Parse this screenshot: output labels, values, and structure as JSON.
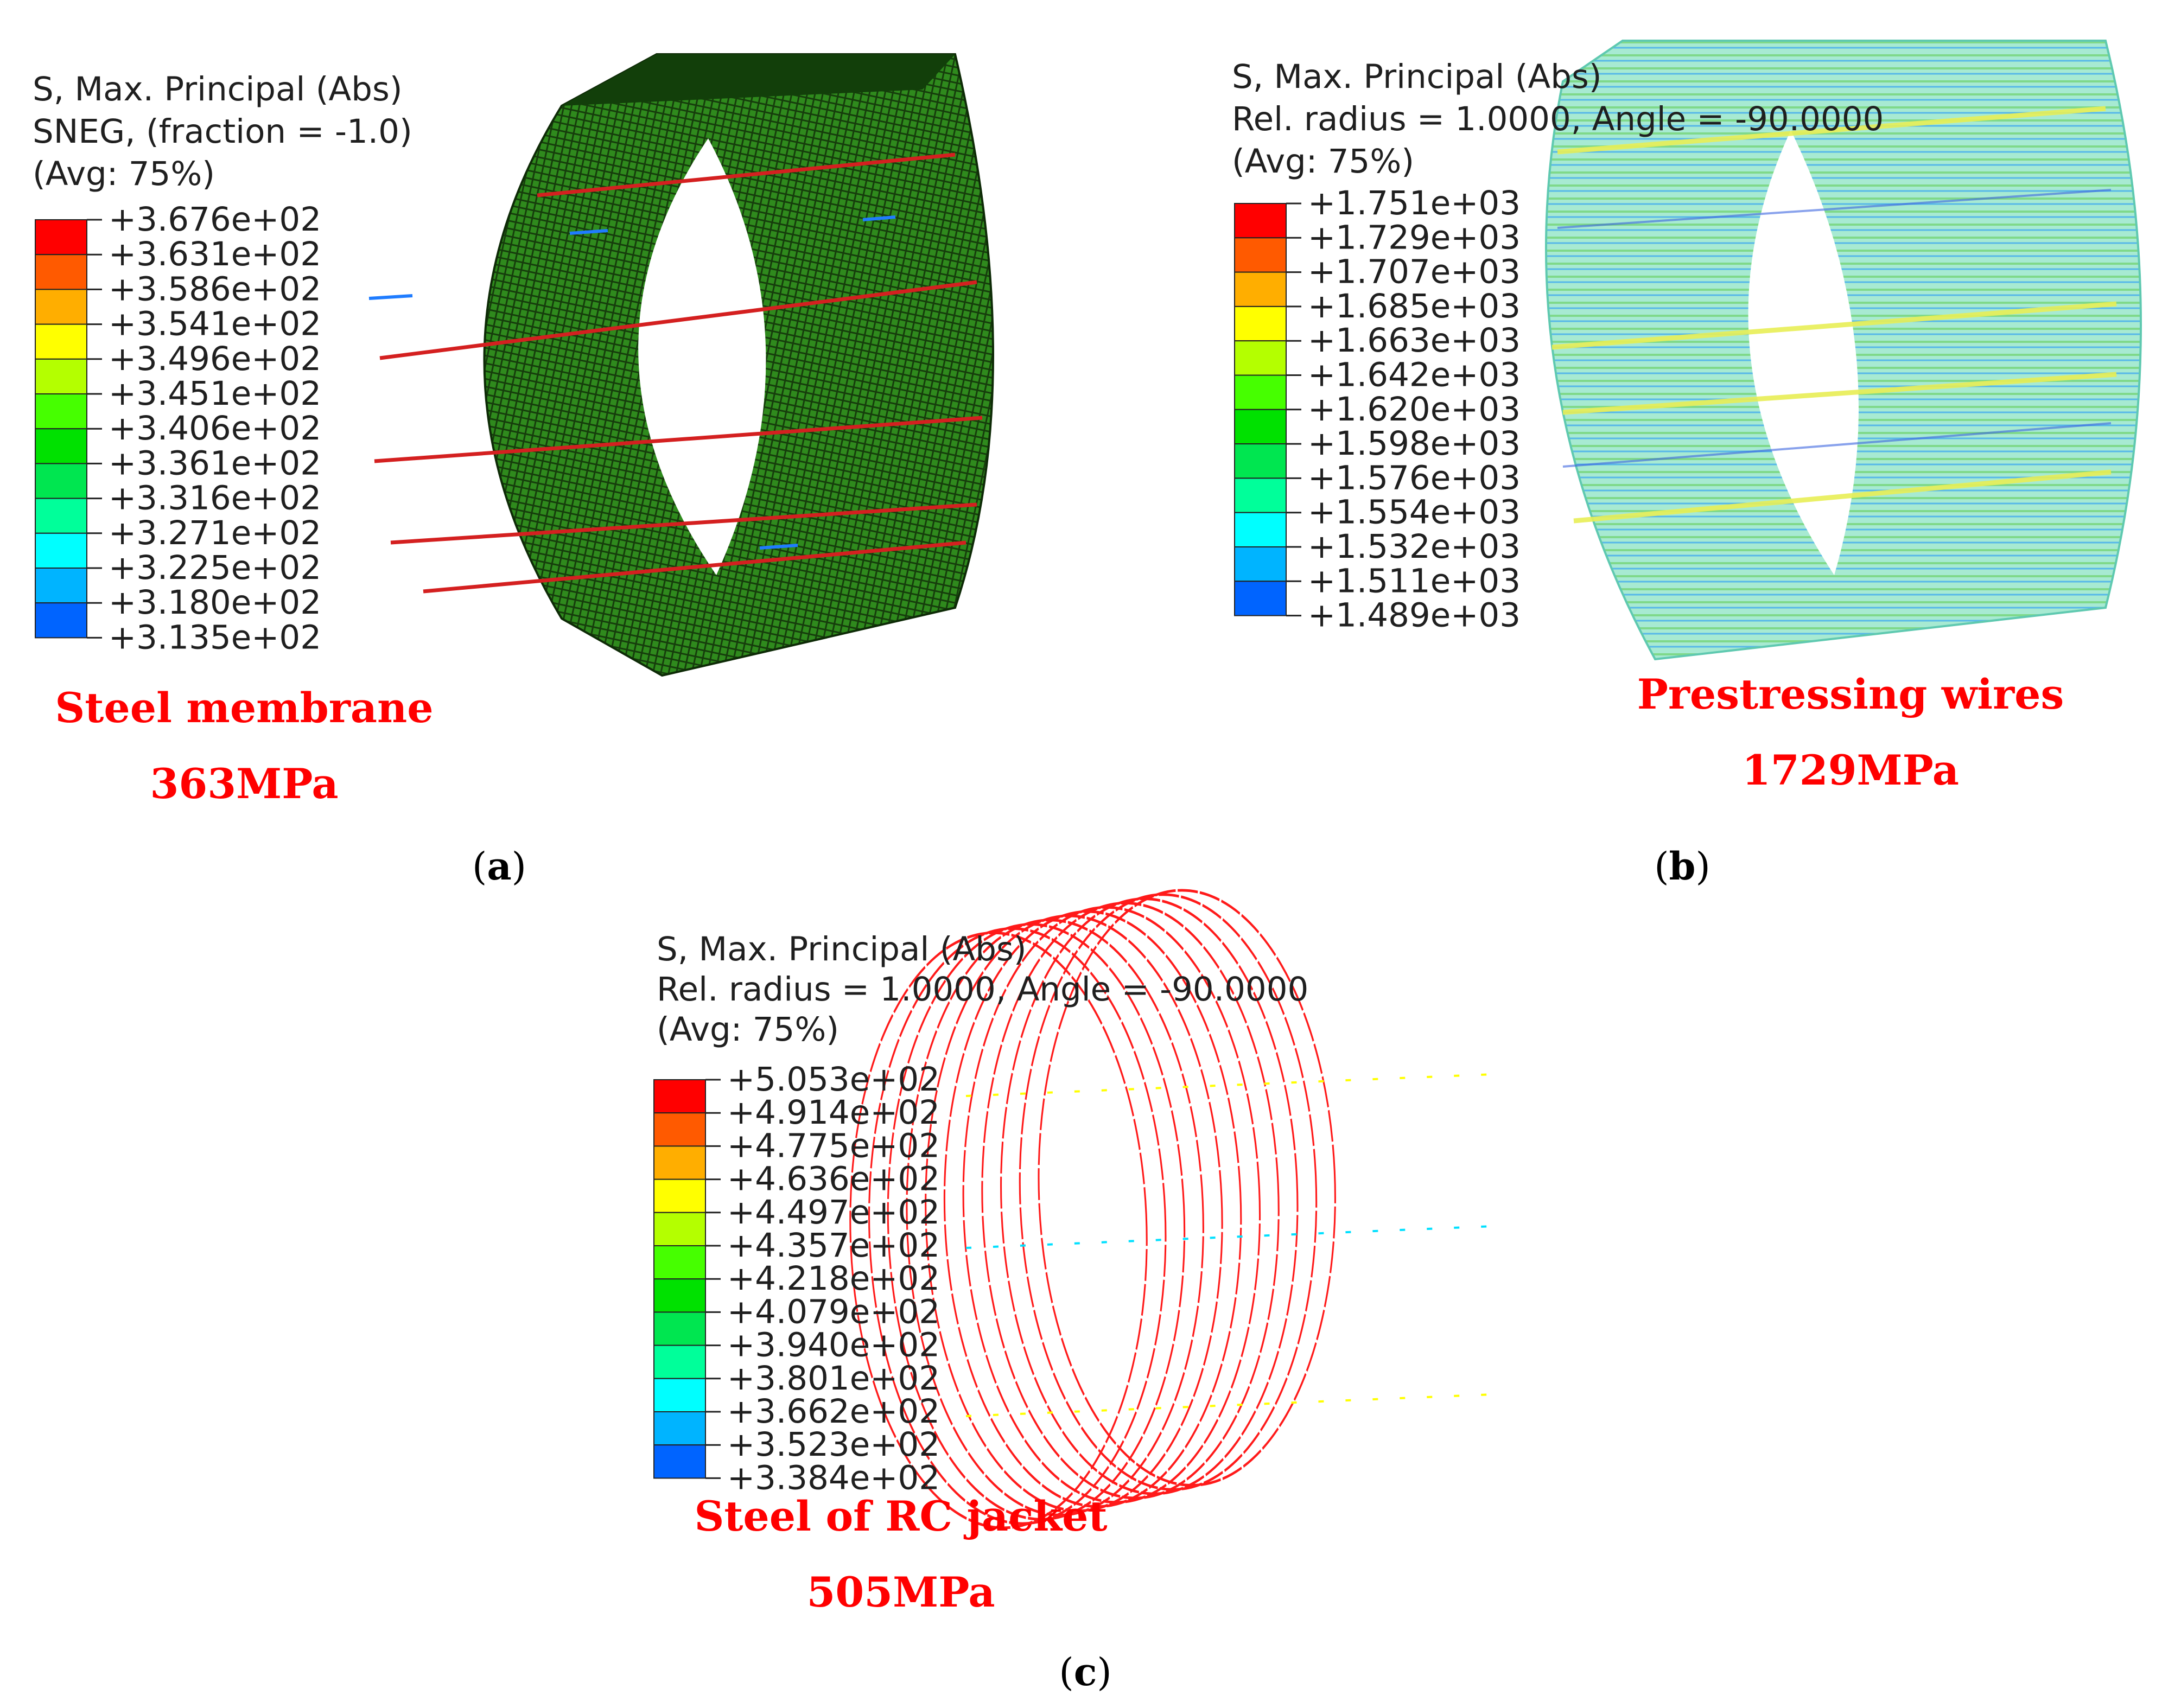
{
  "panels": [
    {
      "id": "a",
      "label": "a",
      "title_lines": [
        "S, Max. Principal (Abs)",
        "SNEG, (fraction = -1.0)",
        "(Avg: 75%)"
      ],
      "legend_values": [
        "+3.676e+02",
        "+3.631e+02",
        "+3.586e+02",
        "+3.541e+02",
        "+3.496e+02",
        "+3.451e+02",
        "+3.406e+02",
        "+3.361e+02",
        "+3.316e+02",
        "+3.271e+02",
        "+3.225e+02",
        "+3.180e+02",
        "+3.135e+02"
      ],
      "caption_name": "Steel membrane",
      "caption_value": "363MPa"
    },
    {
      "id": "b",
      "label": "b",
      "title_lines": [
        "S, Max. Principal (Abs)",
        "Rel. radius = 1.0000, Angle = -90.0000",
        "(Avg: 75%)"
      ],
      "legend_values": [
        "+1.751e+03",
        "+1.729e+03",
        "+1.707e+03",
        "+1.685e+03",
        "+1.663e+03",
        "+1.642e+03",
        "+1.620e+03",
        "+1.598e+03",
        "+1.576e+03",
        "+1.554e+03",
        "+1.532e+03",
        "+1.511e+03",
        "+1.489e+03"
      ],
      "caption_name": "Prestressing wires",
      "caption_value": "1729MPa"
    },
    {
      "id": "c",
      "label": "c",
      "title_lines": [
        "S, Max. Principal (Abs)",
        "Rel. radius = 1.0000, Angle = -90.0000",
        "(Avg: 75%)"
      ],
      "legend_values": [
        "+5.053e+02",
        "+4.914e+02",
        "+4.775e+02",
        "+4.636e+02",
        "+4.497e+02",
        "+4.357e+02",
        "+4.218e+02",
        "+4.079e+02",
        "+3.940e+02",
        "+3.801e+02",
        "+3.662e+02",
        "+3.523e+02",
        "+3.384e+02"
      ],
      "caption_name": "Steel of RC jacket",
      "caption_value": "505MPa"
    }
  ],
  "colors": {
    "scale": [
      "#ff0000",
      "#ff5a00",
      "#ffae00",
      "#ffff00",
      "#b4ff00",
      "#46ff00",
      "#00e100",
      "#00e650",
      "#00ff9a",
      "#00ffff",
      "#00b4ff",
      "#0064ff",
      "#0000ff"
    ],
    "caption": "#ff0000",
    "membrane_green": "#2f8a1d",
    "wire_green": "#9be38c",
    "jacket_red": "#ff1a1a"
  }
}
